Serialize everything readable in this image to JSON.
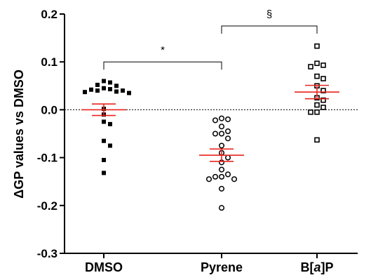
{
  "chart_data": {
    "type": "scatter",
    "title": "",
    "ylabel": "ΔGP values vs DMSO",
    "xlabel": "",
    "ylim": [
      -0.3,
      0.2
    ],
    "yticks": [
      "0.2",
      "0.1",
      "0.0",
      "-0.1",
      "-0.2",
      "-0.3"
    ],
    "categories": [
      "DMSO",
      "Pyrene",
      "B[a]P"
    ],
    "reference_line": {
      "y": 0.0,
      "style": "dotted"
    },
    "mean_sem_color": "#e8251f",
    "series": [
      {
        "category": "DMSO",
        "marker": "filled-square",
        "values": [
          0.06,
          0.057,
          0.052,
          0.05,
          0.045,
          0.043,
          0.042,
          0.04,
          0.04,
          0.038,
          0.037,
          0.035,
          0.002,
          -0.01,
          -0.025,
          -0.03,
          -0.065,
          -0.075,
          -0.105,
          -0.132
        ],
        "mean": 0.0,
        "sem": 0.012
      },
      {
        "category": "Pyrene",
        "marker": "open-circle",
        "values": [
          -0.018,
          -0.02,
          -0.022,
          -0.035,
          -0.045,
          -0.05,
          -0.05,
          -0.06,
          -0.075,
          -0.09,
          -0.1,
          -0.11,
          -0.125,
          -0.135,
          -0.14,
          -0.14,
          -0.145,
          -0.145,
          -0.165,
          -0.205
        ],
        "mean": -0.095,
        "sem": 0.013
      },
      {
        "category": "B[a]P",
        "marker": "open-square",
        "values": [
          0.133,
          0.097,
          0.093,
          0.09,
          0.07,
          0.065,
          0.05,
          0.04,
          0.025,
          0.02,
          0.01,
          0.005,
          -0.005,
          -0.005,
          -0.063
        ],
        "mean": 0.037,
        "sem": 0.014
      }
    ],
    "significance": [
      {
        "from": "DMSO",
        "to": "Pyrene",
        "label": "*",
        "y": 0.1
      },
      {
        "from": "Pyrene",
        "to": "B[a]P",
        "label": "§",
        "y": 0.175
      }
    ]
  }
}
